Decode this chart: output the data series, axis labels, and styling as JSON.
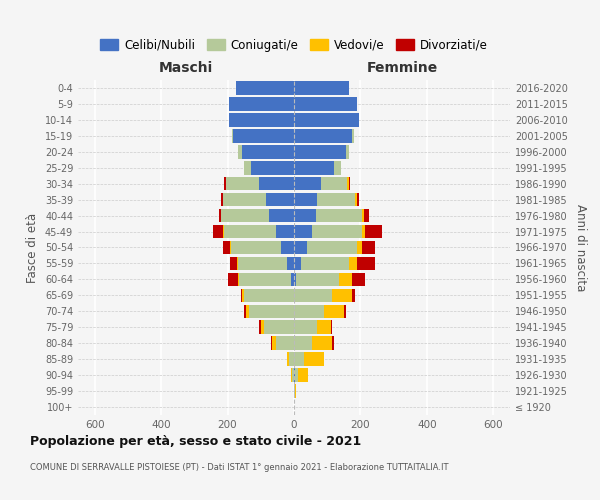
{
  "age_groups": [
    "100+",
    "95-99",
    "90-94",
    "85-89",
    "80-84",
    "75-79",
    "70-74",
    "65-69",
    "60-64",
    "55-59",
    "50-54",
    "45-49",
    "40-44",
    "35-39",
    "30-34",
    "25-29",
    "20-24",
    "15-19",
    "10-14",
    "5-9",
    "0-4"
  ],
  "birth_years": [
    "≤ 1920",
    "1921-1925",
    "1926-1930",
    "1931-1935",
    "1936-1940",
    "1941-1945",
    "1946-1950",
    "1951-1955",
    "1956-1960",
    "1961-1965",
    "1966-1970",
    "1971-1975",
    "1976-1980",
    "1981-1985",
    "1986-1990",
    "1991-1995",
    "1996-2000",
    "2001-2005",
    "2006-2010",
    "2011-2015",
    "2016-2020"
  ],
  "maschi": {
    "celibi": [
      0,
      0,
      0,
      0,
      0,
      0,
      0,
      0,
      10,
      20,
      40,
      55,
      75,
      85,
      105,
      130,
      155,
      185,
      195,
      195,
      175
    ],
    "coniugati": [
      0,
      1,
      5,
      15,
      55,
      90,
      135,
      150,
      155,
      150,
      150,
      155,
      145,
      130,
      100,
      20,
      15,
      2,
      0,
      0,
      0
    ],
    "vedovi": [
      0,
      0,
      3,
      5,
      10,
      10,
      10,
      5,
      5,
      3,
      3,
      3,
      0,
      0,
      0,
      0,
      0,
      0,
      0,
      0,
      0
    ],
    "divorziati": [
      0,
      0,
      0,
      0,
      3,
      5,
      5,
      5,
      30,
      20,
      20,
      30,
      5,
      5,
      5,
      0,
      0,
      0,
      0,
      0,
      0
    ]
  },
  "femmine": {
    "nubili": [
      0,
      0,
      2,
      0,
      0,
      0,
      0,
      0,
      5,
      20,
      40,
      55,
      65,
      70,
      80,
      120,
      155,
      175,
      195,
      190,
      165
    ],
    "coniugate": [
      0,
      2,
      10,
      30,
      55,
      70,
      90,
      115,
      130,
      145,
      150,
      150,
      140,
      115,
      80,
      20,
      10,
      5,
      0,
      0,
      0
    ],
    "vedove": [
      0,
      5,
      30,
      60,
      60,
      40,
      60,
      60,
      40,
      25,
      15,
      10,
      5,
      5,
      5,
      0,
      0,
      0,
      0,
      0,
      0
    ],
    "divorziate": [
      0,
      0,
      0,
      0,
      5,
      5,
      5,
      10,
      40,
      55,
      40,
      50,
      15,
      5,
      5,
      0,
      0,
      0,
      0,
      0,
      0
    ]
  },
  "colors": {
    "celibi": "#4472c4",
    "coniugati": "#b5c99a",
    "vedovi": "#ffc000",
    "divorziati": "#c00000"
  },
  "title": "Popolazione per età, sesso e stato civile - 2021",
  "subtitle": "COMUNE DI SERRAVALLE PISTOIESE (PT) - Dati ISTAT 1° gennaio 2021 - Elaborazione TUTTAITALIA.IT",
  "xlabel_left": "Maschi",
  "xlabel_right": "Femmine",
  "ylabel_left": "Fasce di età",
  "ylabel_right": "Anni di nascita",
  "xlim": 650,
  "legend_labels": [
    "Celibi/Nubili",
    "Coniugati/e",
    "Vedovi/e",
    "Divorziati/e"
  ],
  "bg_color": "#f5f5f5",
  "plot_bg": "#f5f5f5"
}
